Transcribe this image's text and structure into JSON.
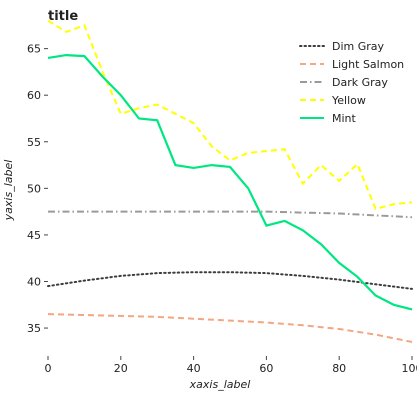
{
  "chart_data": {
    "type": "line",
    "title": "title",
    "xlabel": "xaxis_label",
    "ylabel": "yaxis_label",
    "xlim": [
      0,
      100
    ],
    "ylim": [
      32,
      67
    ],
    "x_ticks": [
      0,
      20,
      40,
      60,
      80,
      100
    ],
    "y_ticks": [
      35,
      40,
      45,
      50,
      55,
      60,
      65
    ],
    "grid": false,
    "legend_position": "right",
    "series": [
      {
        "name": "Dim Gray",
        "color": "#3d3d3d",
        "dash": "dotted",
        "x": [
          0,
          10,
          20,
          30,
          40,
          50,
          60,
          70,
          80,
          90,
          100
        ],
        "y": [
          39.5,
          40.1,
          40.6,
          40.9,
          41.0,
          41.0,
          40.9,
          40.6,
          40.2,
          39.7,
          39.2
        ]
      },
      {
        "name": "Light Salmon",
        "color": "#f4a582",
        "dash": "dashed",
        "x": [
          0,
          10,
          20,
          30,
          40,
          50,
          60,
          70,
          80,
          90,
          100
        ],
        "y": [
          36.5,
          36.4,
          36.3,
          36.2,
          36.0,
          35.8,
          35.6,
          35.3,
          34.9,
          34.3,
          33.5
        ]
      },
      {
        "name": "Dark Gray",
        "color": "#9a9a9a",
        "dash": "dashdot",
        "x": [
          0,
          10,
          20,
          30,
          40,
          50,
          60,
          70,
          80,
          90,
          100
        ],
        "y": [
          47.5,
          47.5,
          47.5,
          47.5,
          47.5,
          47.5,
          47.5,
          47.4,
          47.3,
          47.1,
          46.9
        ]
      },
      {
        "name": "Yellow",
        "color": "#ffff00",
        "dash": "dashed",
        "x": [
          0,
          5,
          10,
          15,
          20,
          25,
          30,
          35,
          40,
          45,
          50,
          55,
          60,
          65,
          70,
          75,
          80,
          85,
          90,
          95,
          100
        ],
        "y": [
          68.0,
          66.8,
          67.5,
          62.5,
          58.0,
          58.6,
          59.0,
          58.0,
          57.0,
          54.5,
          53.0,
          53.8,
          54.0,
          54.2,
          50.5,
          52.5,
          50.8,
          52.6,
          47.8,
          48.3,
          48.5
        ]
      },
      {
        "name": "Mint",
        "color": "#00e680",
        "dash": "solid",
        "x": [
          0,
          5,
          10,
          15,
          20,
          25,
          30,
          35,
          40,
          45,
          50,
          55,
          60,
          65,
          70,
          75,
          80,
          85,
          90,
          95,
          100
        ],
        "y": [
          64.0,
          64.3,
          64.2,
          62.0,
          60.0,
          57.5,
          57.3,
          52.5,
          52.2,
          52.5,
          52.3,
          50.0,
          46.0,
          46.5,
          45.5,
          44.0,
          42.0,
          40.5,
          38.5,
          37.5,
          37.0
        ]
      }
    ]
  }
}
